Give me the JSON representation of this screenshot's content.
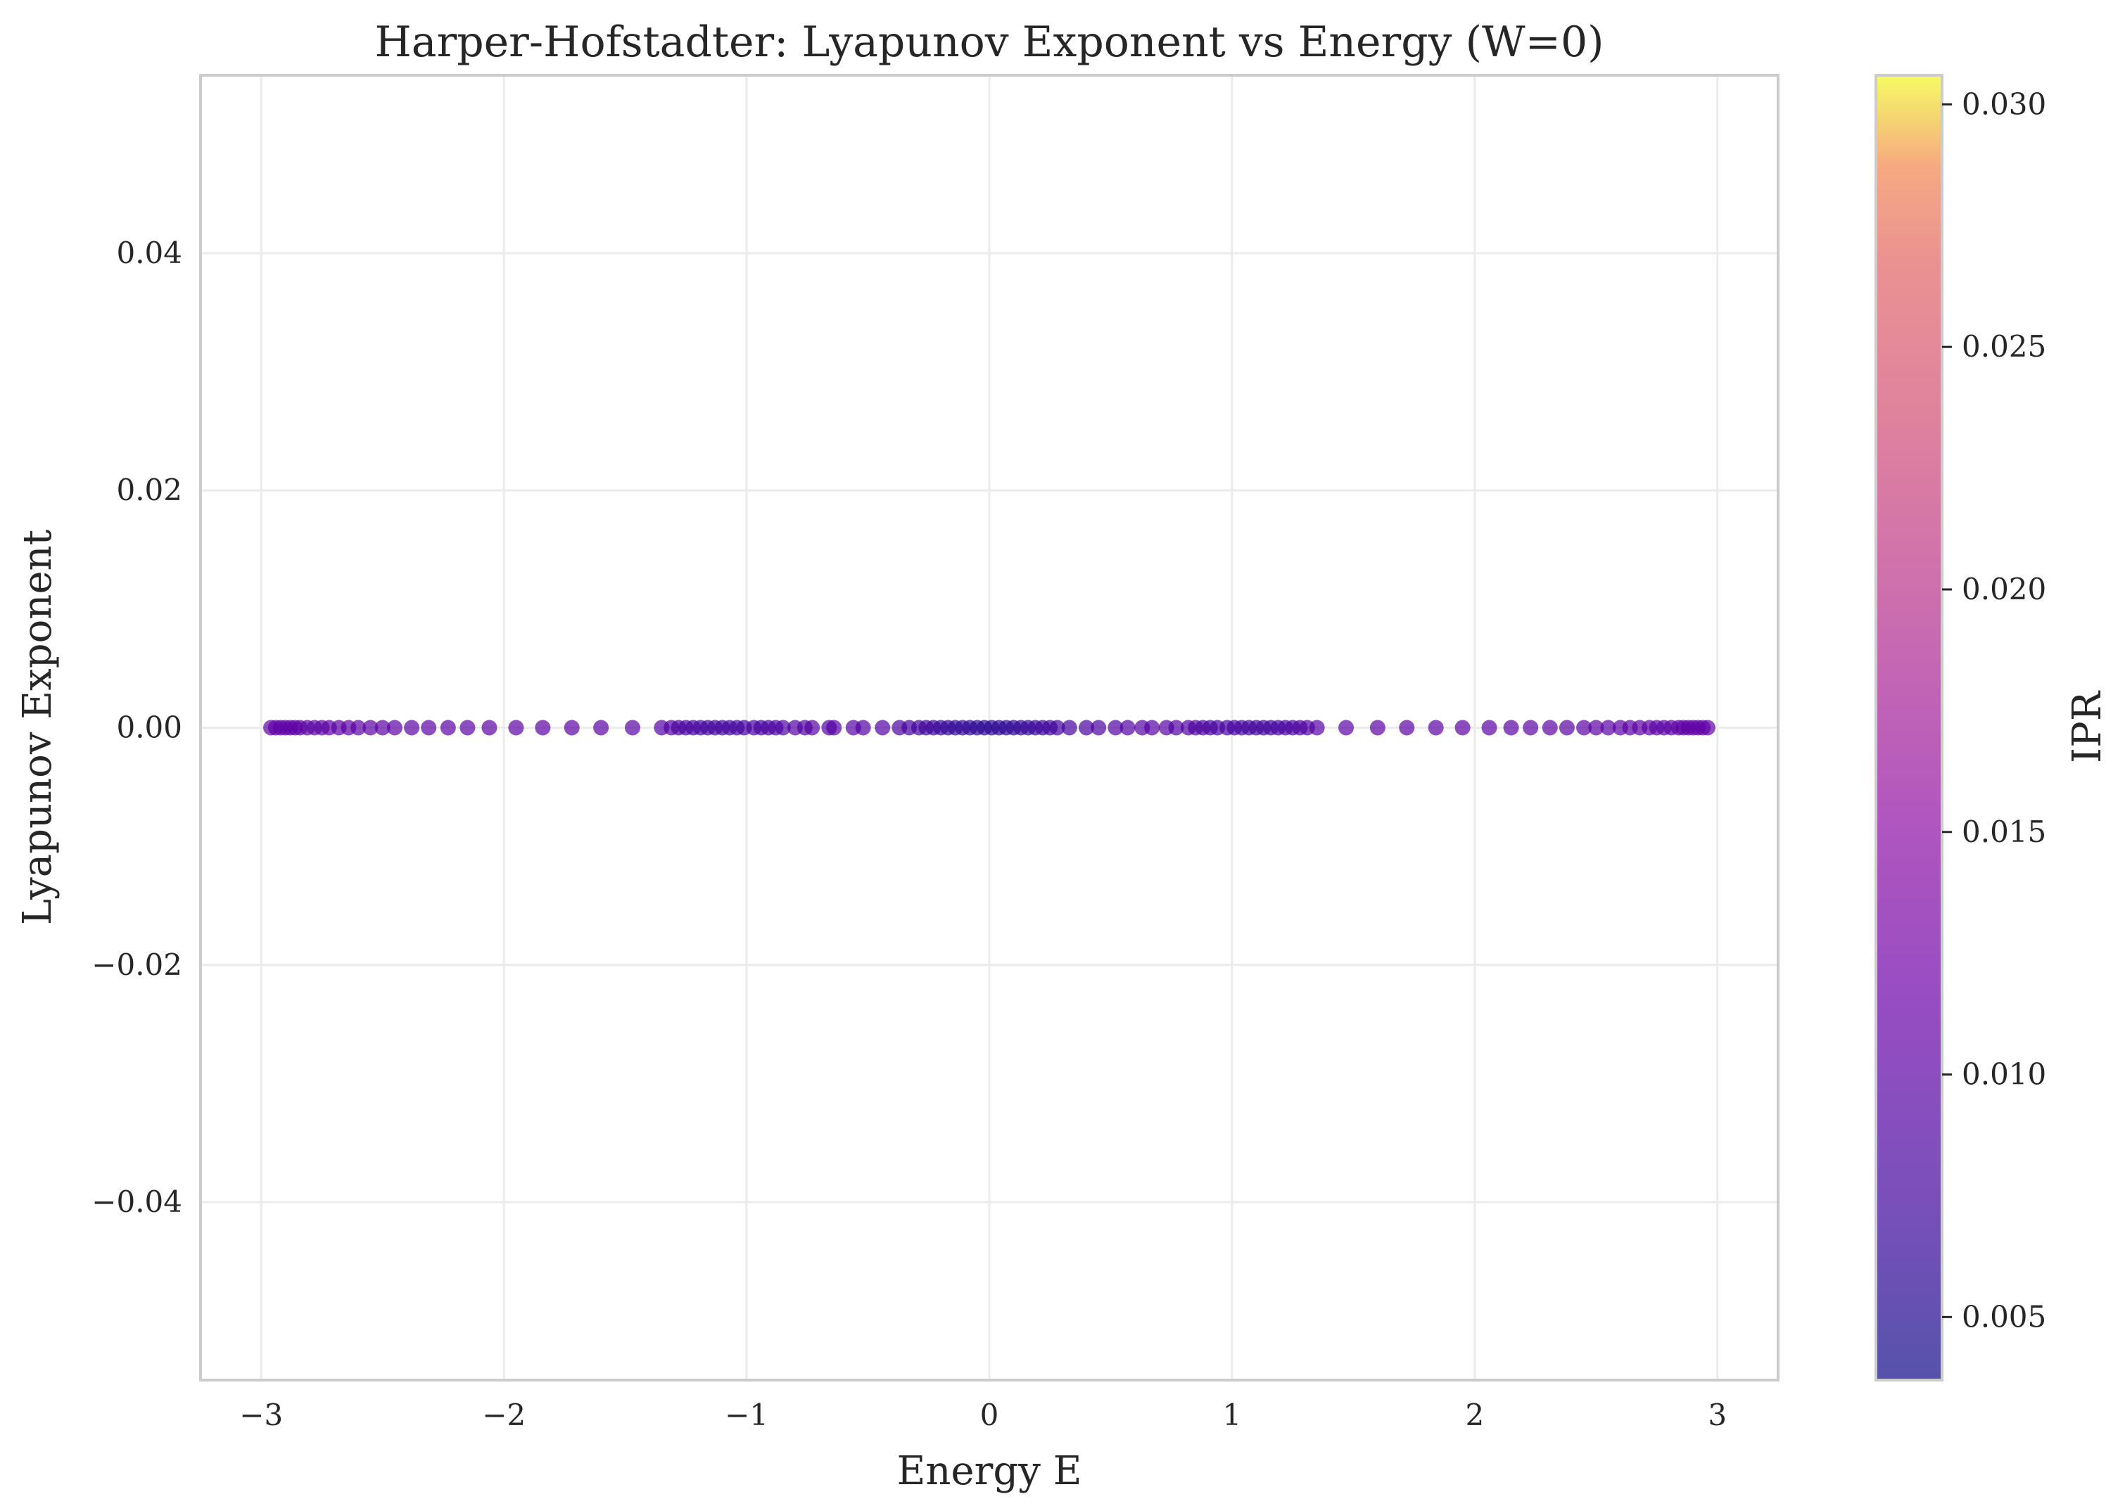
{
  "chart_data": {
    "type": "scatter",
    "title": "Harper-Hofstadter: Lyapunov Exponent vs Energy (W=0)",
    "xlabel": "Energy E",
    "ylabel": "Lyapunov Exponent",
    "xlim": [
      -3.25,
      3.25
    ],
    "ylim": [
      -0.055,
      0.055
    ],
    "xticks": [
      -3,
      -2,
      -1,
      0,
      1,
      2,
      3
    ],
    "xtick_labels": [
      "−3",
      "−2",
      "−1",
      "0",
      "1",
      "2",
      "3"
    ],
    "yticks": [
      -0.04,
      -0.02,
      0.0,
      0.02,
      0.04
    ],
    "ytick_labels": [
      "−0.04",
      "−0.02",
      "0.00",
      "0.02",
      "0.04"
    ],
    "grid": true,
    "colorbar": {
      "label": "IPR",
      "colormap": "plasma",
      "range": [
        0.0037,
        0.0306
      ],
      "ticks": [
        0.005,
        0.01,
        0.015,
        0.02,
        0.025,
        0.03
      ],
      "tick_labels": [
        "0.005",
        "0.010",
        "0.015",
        "0.020",
        "0.025",
        "0.030"
      ]
    },
    "marker_alpha": 0.7,
    "points": [
      {
        "x": -2.96,
        "y": 0,
        "c": 0.0105
      },
      {
        "x": -2.94,
        "y": 0,
        "c": 0.0105
      },
      {
        "x": -2.92,
        "y": 0,
        "c": 0.0104
      },
      {
        "x": -2.9,
        "y": 0,
        "c": 0.0104
      },
      {
        "x": -2.88,
        "y": 0,
        "c": 0.0103
      },
      {
        "x": -2.86,
        "y": 0,
        "c": 0.0103
      },
      {
        "x": -2.84,
        "y": 0,
        "c": 0.0102
      },
      {
        "x": -2.81,
        "y": 0,
        "c": 0.0102
      },
      {
        "x": -2.78,
        "y": 0,
        "c": 0.0102
      },
      {
        "x": -2.75,
        "y": 0,
        "c": 0.0101
      },
      {
        "x": -2.72,
        "y": 0,
        "c": 0.0101
      },
      {
        "x": -2.68,
        "y": 0,
        "c": 0.0101
      },
      {
        "x": -2.64,
        "y": 0,
        "c": 0.01
      },
      {
        "x": -2.6,
        "y": 0,
        "c": 0.01
      },
      {
        "x": -2.55,
        "y": 0,
        "c": 0.01
      },
      {
        "x": -2.5,
        "y": 0,
        "c": 0.01
      },
      {
        "x": -2.45,
        "y": 0,
        "c": 0.01
      },
      {
        "x": -2.38,
        "y": 0,
        "c": 0.01
      },
      {
        "x": -2.31,
        "y": 0,
        "c": 0.01
      },
      {
        "x": -2.23,
        "y": 0,
        "c": 0.01
      },
      {
        "x": -2.15,
        "y": 0,
        "c": 0.01
      },
      {
        "x": -2.06,
        "y": 0,
        "c": 0.01
      },
      {
        "x": -1.95,
        "y": 0,
        "c": 0.01
      },
      {
        "x": -1.84,
        "y": 0,
        "c": 0.01
      },
      {
        "x": -1.72,
        "y": 0,
        "c": 0.01
      },
      {
        "x": -1.6,
        "y": 0,
        "c": 0.01
      },
      {
        "x": -1.47,
        "y": 0,
        "c": 0.01
      },
      {
        "x": -1.35,
        "y": 0,
        "c": 0.0095
      },
      {
        "x": -1.31,
        "y": 0,
        "c": 0.009
      },
      {
        "x": -1.28,
        "y": 0,
        "c": 0.0085
      },
      {
        "x": -1.25,
        "y": 0,
        "c": 0.0082
      },
      {
        "x": -1.22,
        "y": 0,
        "c": 0.008
      },
      {
        "x": -1.19,
        "y": 0,
        "c": 0.0078
      },
      {
        "x": -1.16,
        "y": 0,
        "c": 0.0076
      },
      {
        "x": -1.13,
        "y": 0,
        "c": 0.0075
      },
      {
        "x": -1.1,
        "y": 0,
        "c": 0.0075
      },
      {
        "x": -1.07,
        "y": 0,
        "c": 0.0076
      },
      {
        "x": -1.04,
        "y": 0,
        "c": 0.0078
      },
      {
        "x": -1.01,
        "y": 0,
        "c": 0.008
      },
      {
        "x": -0.97,
        "y": 0,
        "c": 0.0082
      },
      {
        "x": -0.94,
        "y": 0,
        "c": 0.008
      },
      {
        "x": -0.91,
        "y": 0,
        "c": 0.0082
      },
      {
        "x": -0.88,
        "y": 0,
        "c": 0.0085
      },
      {
        "x": -0.85,
        "y": 0,
        "c": 0.0088
      },
      {
        "x": -0.8,
        "y": 0,
        "c": 0.009
      },
      {
        "x": -0.76,
        "y": 0,
        "c": 0.0092
      },
      {
        "x": -0.73,
        "y": 0,
        "c": 0.0095
      },
      {
        "x": -0.66,
        "y": 0,
        "c": 0.0095
      },
      {
        "x": -0.64,
        "y": 0,
        "c": 0.0095
      },
      {
        "x": -0.56,
        "y": 0,
        "c": 0.0095
      },
      {
        "x": -0.52,
        "y": 0,
        "c": 0.0092
      },
      {
        "x": -0.44,
        "y": 0,
        "c": 0.009
      },
      {
        "x": -0.37,
        "y": 0,
        "c": 0.0085
      },
      {
        "x": -0.33,
        "y": 0,
        "c": 0.008
      },
      {
        "x": -0.29,
        "y": 0,
        "c": 0.0076
      },
      {
        "x": -0.26,
        "y": 0,
        "c": 0.0073
      },
      {
        "x": -0.23,
        "y": 0,
        "c": 0.007
      },
      {
        "x": -0.2,
        "y": 0,
        "c": 0.0068
      },
      {
        "x": -0.17,
        "y": 0,
        "c": 0.0066
      },
      {
        "x": -0.14,
        "y": 0,
        "c": 0.0064
      },
      {
        "x": -0.11,
        "y": 0,
        "c": 0.0062
      },
      {
        "x": -0.08,
        "y": 0,
        "c": 0.006
      },
      {
        "x": -0.05,
        "y": 0,
        "c": 0.0058
      },
      {
        "x": -0.02,
        "y": 0,
        "c": 0.0058
      },
      {
        "x": 0.01,
        "y": 0,
        "c": 0.0058
      },
      {
        "x": 0.04,
        "y": 0,
        "c": 0.0058
      },
      {
        "x": 0.07,
        "y": 0,
        "c": 0.006
      },
      {
        "x": 0.1,
        "y": 0,
        "c": 0.0062
      },
      {
        "x": 0.13,
        "y": 0,
        "c": 0.0064
      },
      {
        "x": 0.16,
        "y": 0,
        "c": 0.0066
      },
      {
        "x": 0.19,
        "y": 0,
        "c": 0.0068
      },
      {
        "x": 0.22,
        "y": 0,
        "c": 0.007
      },
      {
        "x": 0.25,
        "y": 0,
        "c": 0.0073
      },
      {
        "x": 0.28,
        "y": 0,
        "c": 0.0076
      },
      {
        "x": 0.33,
        "y": 0,
        "c": 0.008
      },
      {
        "x": 0.4,
        "y": 0,
        "c": 0.0082
      },
      {
        "x": 0.45,
        "y": 0,
        "c": 0.0085
      },
      {
        "x": 0.52,
        "y": 0,
        "c": 0.009
      },
      {
        "x": 0.57,
        "y": 0,
        "c": 0.0092
      },
      {
        "x": 0.63,
        "y": 0,
        "c": 0.0095
      },
      {
        "x": 0.67,
        "y": 0,
        "c": 0.0095
      },
      {
        "x": 0.73,
        "y": 0,
        "c": 0.0095
      },
      {
        "x": 0.77,
        "y": 0,
        "c": 0.0092
      },
      {
        "x": 0.82,
        "y": 0,
        "c": 0.009
      },
      {
        "x": 0.85,
        "y": 0,
        "c": 0.0088
      },
      {
        "x": 0.88,
        "y": 0,
        "c": 0.0085
      },
      {
        "x": 0.91,
        "y": 0,
        "c": 0.0082
      },
      {
        "x": 0.94,
        "y": 0,
        "c": 0.008
      },
      {
        "x": 0.98,
        "y": 0,
        "c": 0.0082
      },
      {
        "x": 1.01,
        "y": 0,
        "c": 0.008
      },
      {
        "x": 1.04,
        "y": 0,
        "c": 0.0078
      },
      {
        "x": 1.07,
        "y": 0,
        "c": 0.0076
      },
      {
        "x": 1.1,
        "y": 0,
        "c": 0.0075
      },
      {
        "x": 1.13,
        "y": 0,
        "c": 0.0075
      },
      {
        "x": 1.16,
        "y": 0,
        "c": 0.0076
      },
      {
        "x": 1.19,
        "y": 0,
        "c": 0.0078
      },
      {
        "x": 1.22,
        "y": 0,
        "c": 0.008
      },
      {
        "x": 1.25,
        "y": 0,
        "c": 0.0082
      },
      {
        "x": 1.28,
        "y": 0,
        "c": 0.0085
      },
      {
        "x": 1.31,
        "y": 0,
        "c": 0.009
      },
      {
        "x": 1.35,
        "y": 0,
        "c": 0.0095
      },
      {
        "x": 1.47,
        "y": 0,
        "c": 0.01
      },
      {
        "x": 1.6,
        "y": 0,
        "c": 0.01
      },
      {
        "x": 1.72,
        "y": 0,
        "c": 0.01
      },
      {
        "x": 1.84,
        "y": 0,
        "c": 0.01
      },
      {
        "x": 1.95,
        "y": 0,
        "c": 0.01
      },
      {
        "x": 2.06,
        "y": 0,
        "c": 0.01
      },
      {
        "x": 2.15,
        "y": 0,
        "c": 0.01
      },
      {
        "x": 2.23,
        "y": 0,
        "c": 0.01
      },
      {
        "x": 2.31,
        "y": 0,
        "c": 0.01
      },
      {
        "x": 2.38,
        "y": 0,
        "c": 0.01
      },
      {
        "x": 2.45,
        "y": 0,
        "c": 0.01
      },
      {
        "x": 2.5,
        "y": 0,
        "c": 0.01
      },
      {
        "x": 2.55,
        "y": 0,
        "c": 0.01
      },
      {
        "x": 2.6,
        "y": 0,
        "c": 0.01
      },
      {
        "x": 2.64,
        "y": 0,
        "c": 0.01
      },
      {
        "x": 2.68,
        "y": 0,
        "c": 0.0101
      },
      {
        "x": 2.72,
        "y": 0,
        "c": 0.0101
      },
      {
        "x": 2.75,
        "y": 0,
        "c": 0.0101
      },
      {
        "x": 2.78,
        "y": 0,
        "c": 0.0102
      },
      {
        "x": 2.81,
        "y": 0,
        "c": 0.0102
      },
      {
        "x": 2.84,
        "y": 0,
        "c": 0.0102
      },
      {
        "x": 2.86,
        "y": 0,
        "c": 0.0103
      },
      {
        "x": 2.88,
        "y": 0,
        "c": 0.0103
      },
      {
        "x": 2.9,
        "y": 0,
        "c": 0.0104
      },
      {
        "x": 2.92,
        "y": 0,
        "c": 0.0104
      },
      {
        "x": 2.94,
        "y": 0,
        "c": 0.0105
      },
      {
        "x": 2.96,
        "y": 0,
        "c": 0.0105
      }
    ]
  }
}
